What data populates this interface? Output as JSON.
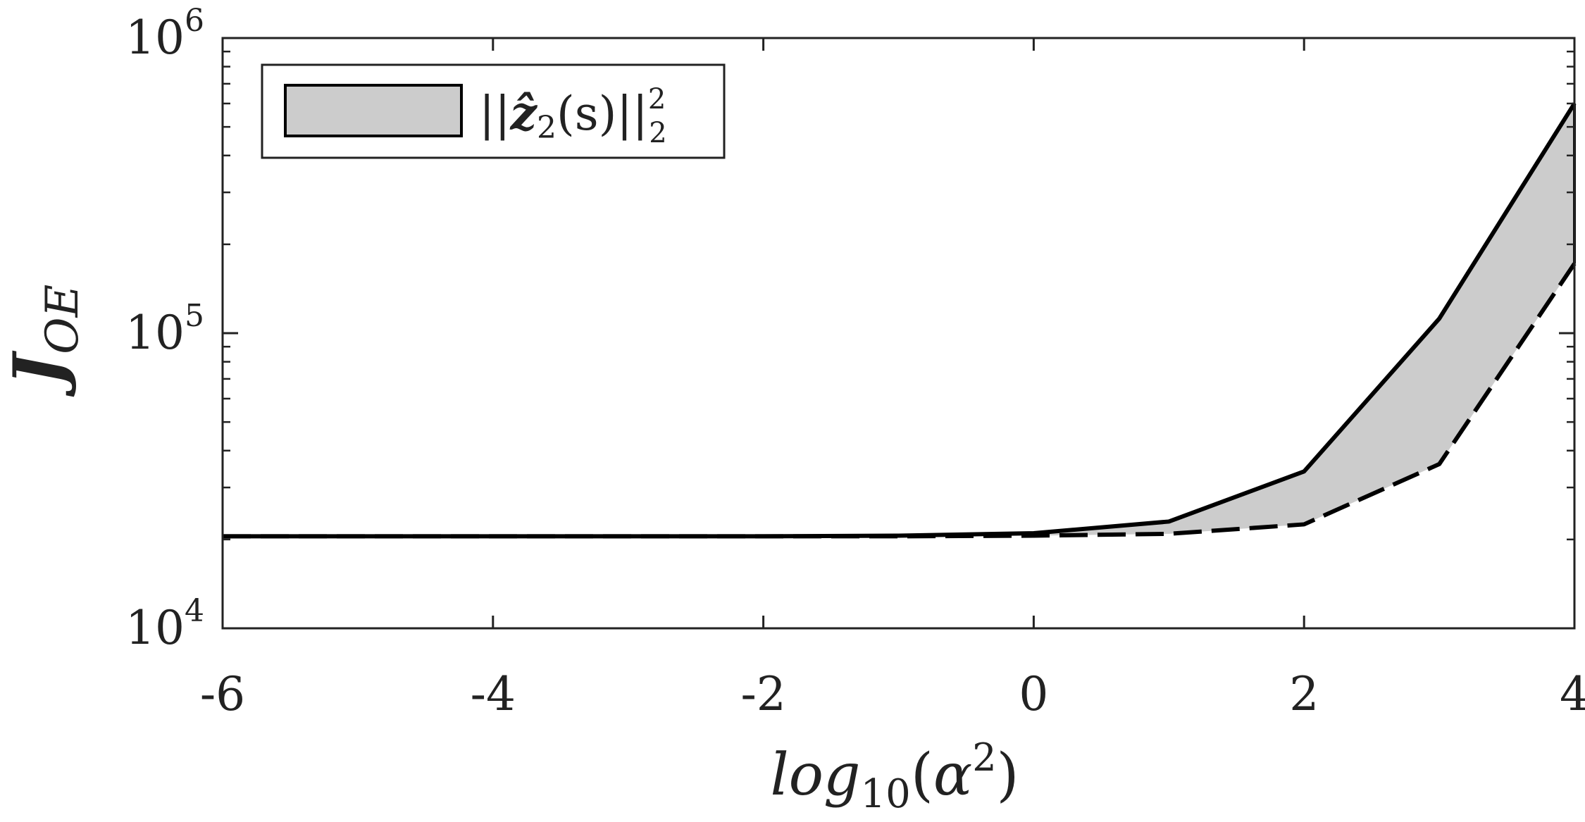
{
  "chart_data": {
    "type": "area",
    "title": "",
    "xlabel": {
      "base": "log",
      "sub": "10",
      "open": "(",
      "var": "α",
      "sup": "2",
      "close": ")"
    },
    "ylabel": {
      "base": "J",
      "sub": "OE"
    },
    "xlim": [
      -6,
      4
    ],
    "ylim": [
      10000,
      1000000
    ],
    "yscale": "log",
    "grid": false,
    "xticks": [
      -6,
      -4,
      -2,
      0,
      2,
      4
    ],
    "xtick_labels": [
      "-6",
      "-4",
      "-2",
      "0",
      "2",
      "4"
    ],
    "yticks": [
      10000,
      100000,
      1000000
    ],
    "ytick_labels": [
      {
        "base": "10",
        "exp": "4"
      },
      {
        "base": "10",
        "exp": "5"
      },
      {
        "base": "10",
        "exp": "6"
      }
    ],
    "legend": {
      "placement": "top-left",
      "label": {
        "open": "||",
        "var": "ẑ",
        "sub": "2",
        "arg": "(s)",
        "close": "||",
        "sup": "2",
        "sub2": "2"
      }
    },
    "x": [
      -6,
      -5,
      -4,
      -3,
      -2,
      -1,
      0,
      1,
      2,
      3,
      4
    ],
    "upper": [
      20500,
      20500,
      20500,
      20500,
      20500,
      20600,
      21000,
      23000,
      34000,
      112000,
      600000
    ],
    "lower": [
      20500,
      20500,
      20500,
      20500,
      20500,
      20500,
      20600,
      20900,
      22500,
      36000,
      172000
    ],
    "fill_color": "#cccccc",
    "line_color": "#000000",
    "upper_style": "solid",
    "lower_style": "dashed"
  }
}
